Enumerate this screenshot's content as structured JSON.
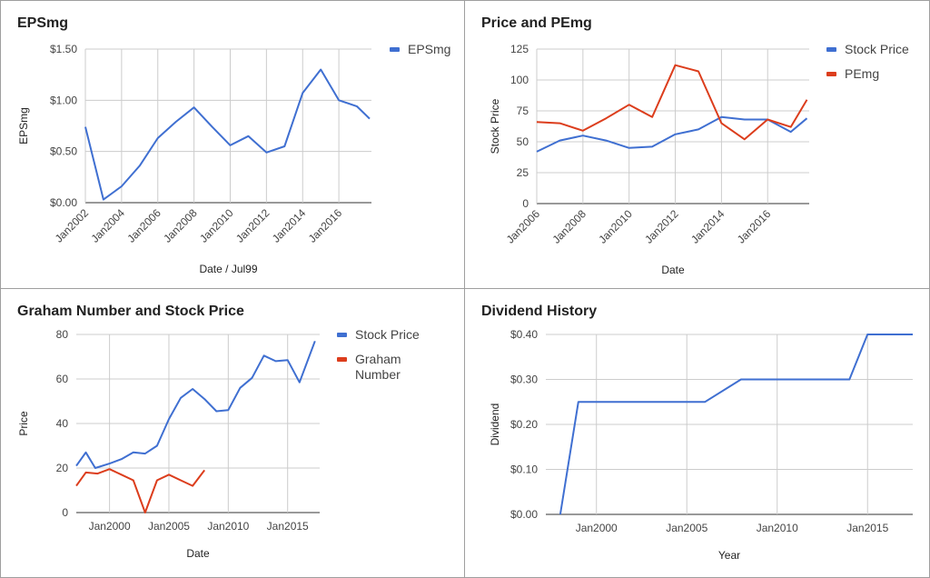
{
  "colors": {
    "blue": "#3f6fd1",
    "red": "#dc3d1c",
    "grid": "#cccccc",
    "axis": "#333333"
  },
  "chart_data": [
    {
      "id": "eps",
      "type": "line",
      "title": "EPSmg",
      "xlabel": "Date / Jul99",
      "ylabel": "EPSmg",
      "x_ticks": [
        "Jan2002",
        "Jan2004",
        "Jan2006",
        "Jan2008",
        "Jan2010",
        "Jan2012",
        "Jan2014",
        "Jan2016"
      ],
      "y_ticks": [
        "$0.00",
        "$0.50",
        "$1.00",
        "$1.50"
      ],
      "xlim": [
        2002,
        2017.8
      ],
      "ylim": [
        0,
        1.5
      ],
      "x_tick_rotated": true,
      "legend_position": "right",
      "series": [
        {
          "name": "EPSmg",
          "color": "blue",
          "x": [
            2002,
            2003,
            2004,
            2005,
            2006,
            2007,
            2008,
            2009,
            2010,
            2011,
            2012,
            2013,
            2014,
            2015,
            2016,
            2017,
            2017.7
          ],
          "y": [
            0.74,
            0.03,
            0.16,
            0.36,
            0.63,
            0.79,
            0.93,
            0.74,
            0.56,
            0.65,
            0.49,
            0.55,
            1.07,
            1.3,
            1.0,
            0.94,
            0.82
          ]
        }
      ]
    },
    {
      "id": "pe",
      "type": "line",
      "title": "Price and PEmg",
      "xlabel": "Date",
      "ylabel": "Stock Price",
      "x_ticks": [
        "Jan2006",
        "Jan2008",
        "Jan2010",
        "Jan2012",
        "Jan2014",
        "Jan2016"
      ],
      "y_ticks": [
        "0",
        "25",
        "50",
        "75",
        "100",
        "125"
      ],
      "xlim": [
        2006,
        2017.8
      ],
      "ylim": [
        0,
        125
      ],
      "x_tick_rotated": true,
      "legend_position": "right",
      "series": [
        {
          "name": "Stock Price",
          "color": "blue",
          "x": [
            2006,
            2007,
            2008,
            2009,
            2010,
            2011,
            2012,
            2013,
            2014,
            2015,
            2016,
            2017,
            2017.7
          ],
          "y": [
            42,
            51,
            55,
            51,
            45,
            46,
            56,
            60,
            70,
            68,
            68,
            58,
            69
          ]
        },
        {
          "name": "PEmg",
          "color": "red",
          "x": [
            2006,
            2007,
            2008,
            2009,
            2010,
            2011,
            2012,
            2013,
            2014,
            2015,
            2016,
            2017,
            2017.7
          ],
          "y": [
            66,
            65,
            59,
            69,
            80,
            70,
            112,
            107,
            65,
            52,
            68,
            62,
            84
          ]
        }
      ]
    },
    {
      "id": "graham",
      "type": "line",
      "title": "Graham Number and Stock Price",
      "xlabel": "Date",
      "ylabel": "Price",
      "x_ticks": [
        "Jan2000",
        "Jan2005",
        "Jan2010",
        "Jan2015"
      ],
      "x_tick_values": [
        2000,
        2005,
        2010,
        2015
      ],
      "y_ticks": [
        "0",
        "20",
        "40",
        "60",
        "80"
      ],
      "xlim": [
        1997.2,
        2017.7
      ],
      "ylim": [
        0,
        80
      ],
      "x_tick_rotated": false,
      "legend_position": "right",
      "series": [
        {
          "name": "Stock Price",
          "color": "blue",
          "x": [
            1997.2,
            1998,
            1998.8,
            2000,
            2001,
            2002,
            2003,
            2004,
            2005,
            2006,
            2007,
            2008,
            2009,
            2010,
            2011,
            2012,
            2013,
            2014,
            2015,
            2016,
            2017.3
          ],
          "y": [
            21,
            27,
            20,
            22,
            24,
            27,
            26.5,
            30,
            42,
            51.5,
            55.5,
            51,
            45.5,
            46,
            56,
            60.5,
            70.5,
            68,
            68.5,
            58.5,
            77
          ]
        },
        {
          "name": "Graham Number",
          "color": "red",
          "x": [
            1997.2,
            1998,
            1999,
            2000,
            2001,
            2002,
            2003,
            2004,
            2005,
            2006,
            2007,
            2008
          ],
          "y": [
            12,
            18,
            17.5,
            19.5,
            17,
            14.5,
            0,
            14.5,
            17,
            14.5,
            12,
            19
          ]
        }
      ]
    },
    {
      "id": "dividend",
      "type": "line",
      "title": "Dividend History",
      "xlabel": "Year",
      "ylabel": "Dividend",
      "x_ticks": [
        "Jan2000",
        "Jan2005",
        "Jan2010",
        "Jan2015"
      ],
      "x_tick_values": [
        2000,
        2005,
        2010,
        2015
      ],
      "y_ticks": [
        "$0.00",
        "$0.10",
        "$0.20",
        "$0.30",
        "$0.40"
      ],
      "xlim": [
        1997.2,
        2017.5
      ],
      "ylim": [
        0,
        0.4
      ],
      "x_tick_rotated": false,
      "legend_position": "none",
      "series": [
        {
          "name": "",
          "color": "blue",
          "x": [
            1998,
            1999,
            2006,
            2008,
            2014,
            2015,
            2017.5
          ],
          "y": [
            0,
            0.25,
            0.25,
            0.3,
            0.3,
            0.4,
            0.4
          ]
        }
      ]
    }
  ]
}
